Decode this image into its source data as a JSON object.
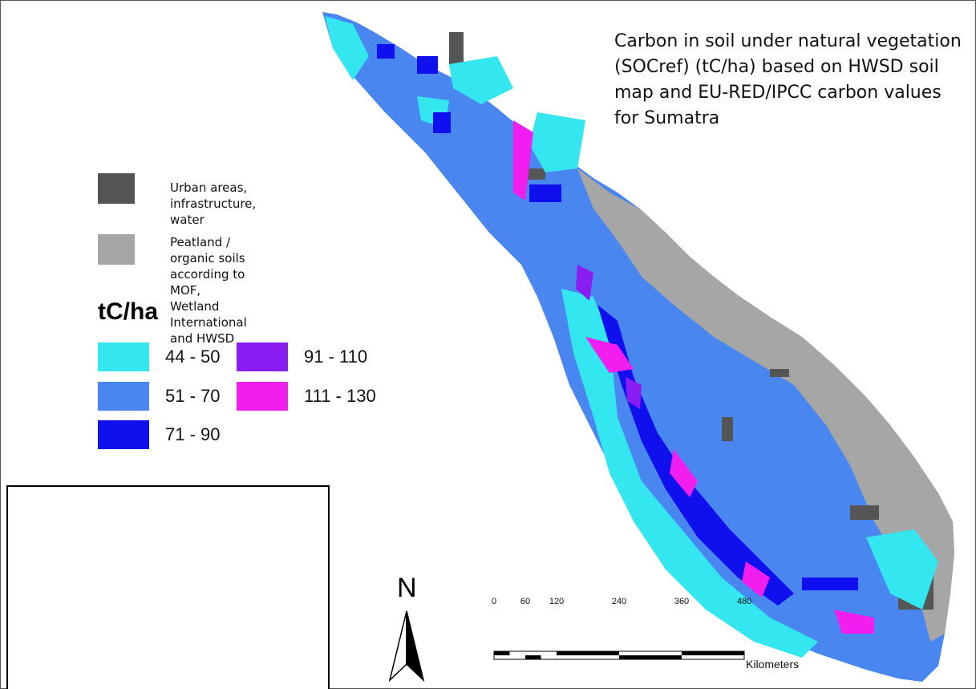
{
  "map": {
    "title": "Carbon in soil under natural vegetation (SOCref) (tC/ha) based on HWSD soil map and EU-RED/IPCC carbon values for Sumatra"
  },
  "overlay_legend": [
    {
      "label": "Urban areas, infrastructure, water",
      "color": "#555555"
    },
    {
      "label": "Peatland / organic soils according to MOF,\n Wetland International and HWSD",
      "color": "#a6a6a6"
    }
  ],
  "legend": {
    "title": "tC/ha",
    "classes": [
      {
        "label": "44 - 50",
        "color": "#33e6f0"
      },
      {
        "label": "91 - 110",
        "color": "#8a1ef2"
      },
      {
        "label": "51 - 70",
        "color": "#4a86f0"
      },
      {
        "label": "111 - 130",
        "color": "#f21ef0"
      },
      {
        "label": "71 - 90",
        "color": "#1010ee"
      }
    ]
  },
  "inset": {
    "highlight_color": "#3cb4f0",
    "land_color": "#000000"
  },
  "north_arrow": {
    "label": "N"
  },
  "scale_bar": {
    "ticks": [
      "0",
      "60",
      "120",
      "240",
      "360",
      "480"
    ],
    "unit": "Kilometers"
  }
}
